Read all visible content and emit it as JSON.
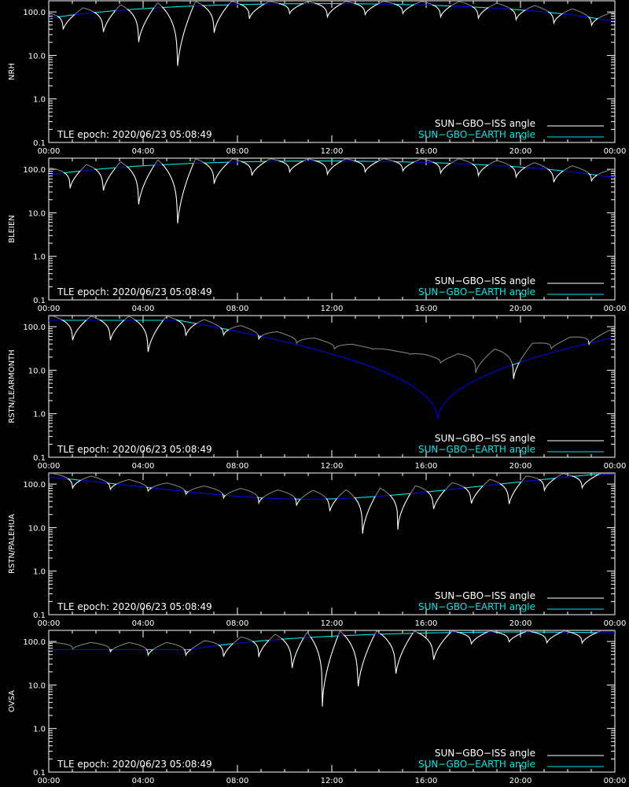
{
  "colors": {
    "background": "#000000",
    "axes": "#ffffff",
    "iss_visible": "#ffffff",
    "iss_hidden": "#7f7f7f",
    "earth_visible": "#00e5e5",
    "earth_hidden": "#0000e0"
  },
  "shared": {
    "epoch_label": "TLE epoch: 2020/06/23 05:08:49",
    "legend": {
      "iss": "SUN−GBO−ISS angle",
      "earth": "SUN−GBO−EARTH angle"
    },
    "x_tick_labels": [
      "00:00",
      "04:00",
      "08:00",
      "12:00",
      "16:00",
      "20:00",
      "00:00"
    ],
    "y_tick_labels": [
      "0.1",
      "1.0",
      "10.0",
      "100.0"
    ]
  },
  "chart_data": [
    {
      "type": "line",
      "ylabel": "NRH",
      "xlim": [
        0,
        24
      ],
      "ylim": [
        0.1,
        180
      ],
      "yscale": "log",
      "series": [
        {
          "name": "SUN−GBO−ISS angle",
          "dips": [
            [
              0.6,
              35
            ],
            [
              2.3,
              28
            ],
            [
              3.8,
              16
            ],
            [
              5.45,
              3.6
            ],
            [
              7.0,
              27
            ],
            [
              8.5,
              65
            ],
            [
              10.2,
              85
            ],
            [
              11.8,
              70
            ],
            [
              13.4,
              80
            ],
            [
              15.0,
              85
            ],
            [
              16.6,
              70
            ],
            [
              18.2,
              65
            ],
            [
              19.8,
              60
            ],
            [
              21.4,
              50
            ],
            [
              23.0,
              45
            ]
          ]
        },
        {
          "name": "SUN−GBO−EARTH angle",
          "envelope": {
            "base": 65,
            "peak": 155,
            "t_peak": 11.6
          }
        }
      ]
    },
    {
      "type": "line",
      "ylabel": "BLEIEN",
      "xlim": [
        0,
        24
      ],
      "ylim": [
        0.1,
        180
      ],
      "yscale": "log",
      "series": [
        {
          "name": "SUN−GBO−ISS angle",
          "dips": [
            [
              0.9,
              33
            ],
            [
              2.3,
              26
            ],
            [
              3.8,
              12
            ],
            [
              5.45,
              3.6
            ],
            [
              7.0,
              40
            ],
            [
              8.6,
              65
            ],
            [
              10.2,
              80
            ],
            [
              11.8,
              70
            ],
            [
              13.4,
              80
            ],
            [
              15.0,
              85
            ],
            [
              16.6,
              75
            ],
            [
              18.2,
              65
            ],
            [
              19.8,
              60
            ],
            [
              21.4,
              45
            ],
            [
              23.0,
              50
            ]
          ]
        },
        {
          "name": "SUN−GBO−EARTH angle",
          "envelope": {
            "base": 68,
            "peak": 155,
            "t_peak": 11.6
          }
        }
      ]
    },
    {
      "type": "line",
      "ylabel": "RSTN/LEARMONTH",
      "xlim": [
        0,
        24
      ],
      "ylim": [
        0.1,
        180
      ],
      "yscale": "log",
      "series": [
        {
          "name": "SUN−GBO−ISS angle",
          "dips": [
            [
              1.0,
              42
            ],
            [
              2.6,
              42
            ],
            [
              4.2,
              21
            ],
            [
              5.8,
              55
            ],
            [
              7.4,
              60
            ],
            [
              8.9,
              50
            ],
            [
              10.5,
              40
            ],
            [
              12.1,
              30
            ],
            [
              13.7,
              30
            ],
            [
              15.3,
              23
            ],
            [
              16.6,
              14
            ],
            [
              18.1,
              8
            ],
            [
              19.7,
              5.5
            ],
            [
              21.3,
              30
            ],
            [
              22.9,
              38
            ]
          ]
        },
        {
          "name": "SUN−GBO−EARTH angle",
          "envelope": {
            "base": 100,
            "peak": 140,
            "t_peak": 4.5,
            "dip_t": 16.5,
            "dip_v": 0.65
          }
        }
      ]
    },
    {
      "type": "line",
      "ylabel": "RSTN/PALEHUA",
      "xlim": [
        0,
        24
      ],
      "ylim": [
        0.1,
        180
      ],
      "yscale": "log",
      "series": [
        {
          "name": "SUN−GBO−ISS angle",
          "dips": [
            [
              1.0,
              75
            ],
            [
              2.6,
              70
            ],
            [
              4.2,
              65
            ],
            [
              5.8,
              55
            ],
            [
              7.4,
              45
            ],
            [
              8.9,
              35
            ],
            [
              10.5,
              30
            ],
            [
              11.9,
              20
            ],
            [
              13.3,
              6
            ],
            [
              14.8,
              9
            ],
            [
              16.3,
              22
            ],
            [
              17.9,
              30
            ],
            [
              19.5,
              28
            ],
            [
              21.0,
              65
            ],
            [
              22.6,
              75
            ]
          ]
        },
        {
          "name": "SUN−GBO−EARTH angle",
          "envelope": {
            "base": 45,
            "peak": 165,
            "t_peak": 11.0,
            "concave": true
          }
        }
      ]
    },
    {
      "type": "line",
      "ylabel": "OVSA",
      "xlim": [
        0,
        24
      ],
      "ylim": [
        0.1,
        180
      ],
      "yscale": "log",
      "series": [
        {
          "name": "SUN−GBO−ISS angle",
          "dips": [
            [
              1.0,
              65
            ],
            [
              2.6,
              55
            ],
            [
              4.2,
              45
            ],
            [
              5.8,
              45
            ],
            [
              7.4,
              40
            ],
            [
              8.9,
              40
            ],
            [
              10.3,
              18
            ],
            [
              11.6,
              3.2
            ],
            [
              13.1,
              6
            ],
            [
              14.7,
              13
            ],
            [
              16.3,
              30
            ],
            [
              17.9,
              80
            ],
            [
              19.5,
              90
            ],
            [
              21.1,
              85
            ],
            [
              22.6,
              85
            ]
          ]
        },
        {
          "name": "SUN−GBO−EARTH angle",
          "envelope": {
            "base": 65,
            "peak": 165,
            "t_peak": 20.0,
            "wide": true
          }
        }
      ]
    }
  ]
}
